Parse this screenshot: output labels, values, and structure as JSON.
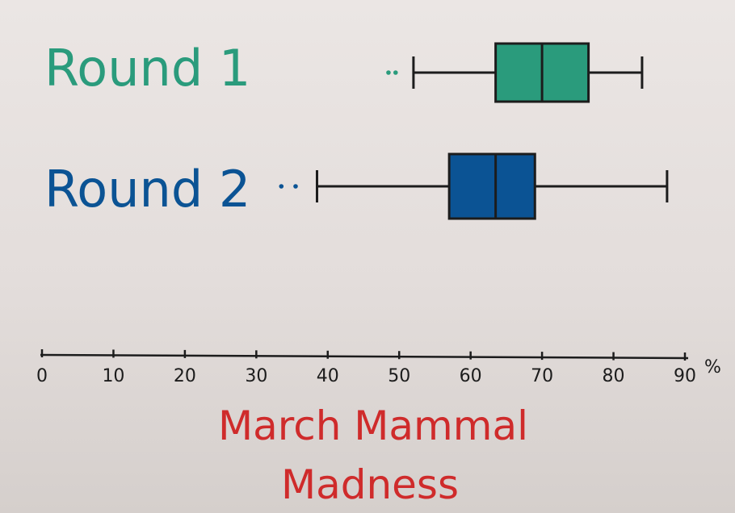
{
  "chart_data": {
    "type": "boxplot",
    "title_lines": [
      "March Mammal",
      "Madness"
    ],
    "unit": "%",
    "xlim": [
      0,
      90
    ],
    "ticks": [
      0,
      10,
      20,
      30,
      40,
      50,
      60,
      70,
      80,
      90
    ],
    "grid": false,
    "colors": {
      "round1": "#2a9b7c",
      "round2": "#0b5394",
      "title": "#cf2b2b",
      "ink": "#1c1c1c"
    },
    "series": [
      {
        "name": "Round 1",
        "whisker_low": 52,
        "q1": 63.5,
        "median": 70,
        "q3": 76.5,
        "whisker_high": 84,
        "outliers": [
          48.5,
          49.5
        ]
      },
      {
        "name": "Round 2",
        "whisker_low": 38.5,
        "q1": 57,
        "median": 63.5,
        "q3": 69,
        "whisker_high": 87.5,
        "outliers": [
          33.5,
          35.5
        ]
      }
    ]
  }
}
